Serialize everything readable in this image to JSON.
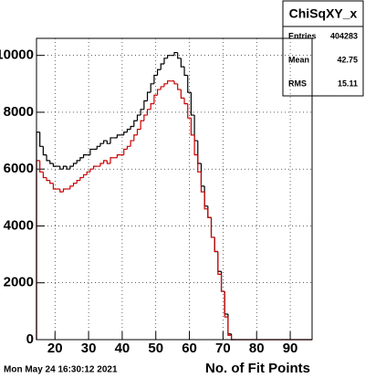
{
  "chart_data": {
    "type": "histogram",
    "stats": {
      "title": "ChiSqXY_x",
      "rows": [
        [
          "Entries",
          "404283"
        ],
        [
          "Mean",
          "42.75"
        ],
        [
          "RMS",
          "15.11"
        ]
      ]
    },
    "timestamp": "Mon May 24 16:30:12 2021",
    "x_label": "No. of Fit Points",
    "bins": [
      14.5,
      15.5,
      16.5,
      17.5,
      18.5,
      19.5,
      20.5,
      21.5,
      22.5,
      23.5,
      24.5,
      25.5,
      26.5,
      27.5,
      28.5,
      29.5,
      30.5,
      31.5,
      32.5,
      33.5,
      34.5,
      35.5,
      36.5,
      37.5,
      38.5,
      39.5,
      40.5,
      41.5,
      42.5,
      43.5,
      44.5,
      45.5,
      46.5,
      47.5,
      48.5,
      49.5,
      50.5,
      51.5,
      52.5,
      53.5,
      54.5,
      55.5,
      56.5,
      57.5,
      58.5,
      59.5,
      60.5,
      61.5,
      62.5,
      63.5,
      64.5,
      65.5,
      66.5,
      67.5,
      68.5,
      69.5,
      70.5,
      71.5,
      72.5,
      73.5,
      74.5,
      75.5,
      76.5,
      77.5,
      78.5,
      79.5,
      80.5,
      81.5,
      82.5,
      83.5,
      84.5,
      85.5,
      86.5,
      87.5,
      88.5,
      89.5,
      90.5,
      91.5,
      92.5,
      93.5,
      94.5,
      95.5,
      96.5
    ],
    "series": [
      {
        "color": "#000000",
        "values": [
          7300,
          6800,
          6500,
          6300,
          6200,
          6100,
          6100,
          6000,
          6100,
          6000,
          6100,
          6200,
          6300,
          6400,
          6500,
          6500,
          6700,
          6700,
          6800,
          6900,
          7000,
          6900,
          7100,
          7100,
          7200,
          7200,
          7300,
          7400,
          7500,
          7700,
          7900,
          8100,
          8400,
          8700,
          9000,
          9300,
          9500,
          9700,
          9900,
          10000,
          10000,
          10100,
          9900,
          9600,
          9300,
          8700,
          7900,
          7000,
          6200,
          5400,
          4700,
          4300,
          3600,
          3100,
          2400,
          1700,
          900,
          200,
          0,
          0,
          0,
          0,
          0,
          0,
          0,
          0,
          0,
          0,
          0,
          0,
          0,
          0,
          0,
          0,
          0,
          0,
          0,
          0,
          0,
          0,
          0,
          0
        ]
      },
      {
        "color": "#cc0000",
        "values": [
          6300,
          5900,
          5700,
          5600,
          5500,
          5300,
          5300,
          5200,
          5300,
          5300,
          5400,
          5500,
          5600,
          5700,
          5800,
          5900,
          6000,
          6100,
          6100,
          6200,
          6300,
          6200,
          6400,
          6400,
          6500,
          6500,
          6700,
          6800,
          7000,
          7200,
          7400,
          7700,
          7900,
          8100,
          8300,
          8600,
          8800,
          8900,
          9000,
          9100,
          9100,
          9000,
          8800,
          8500,
          8300,
          7800,
          7200,
          6500,
          5900,
          5200,
          4600,
          4300,
          3600,
          3100,
          2300,
          1700,
          800,
          150,
          0,
          0,
          0,
          0,
          0,
          0,
          0,
          0,
          0,
          0,
          0,
          0,
          0,
          0,
          0,
          0,
          0,
          0,
          0,
          0,
          0,
          0,
          0,
          0
        ]
      }
    ],
    "xlim": [
      14.5,
      96.5
    ],
    "ylim": [
      0,
      10600
    ],
    "xticks": [
      20,
      30,
      40,
      50,
      60,
      70,
      80,
      90
    ],
    "yticks": [
      0,
      2000,
      4000,
      6000,
      8000,
      10000
    ],
    "grid": true
  }
}
